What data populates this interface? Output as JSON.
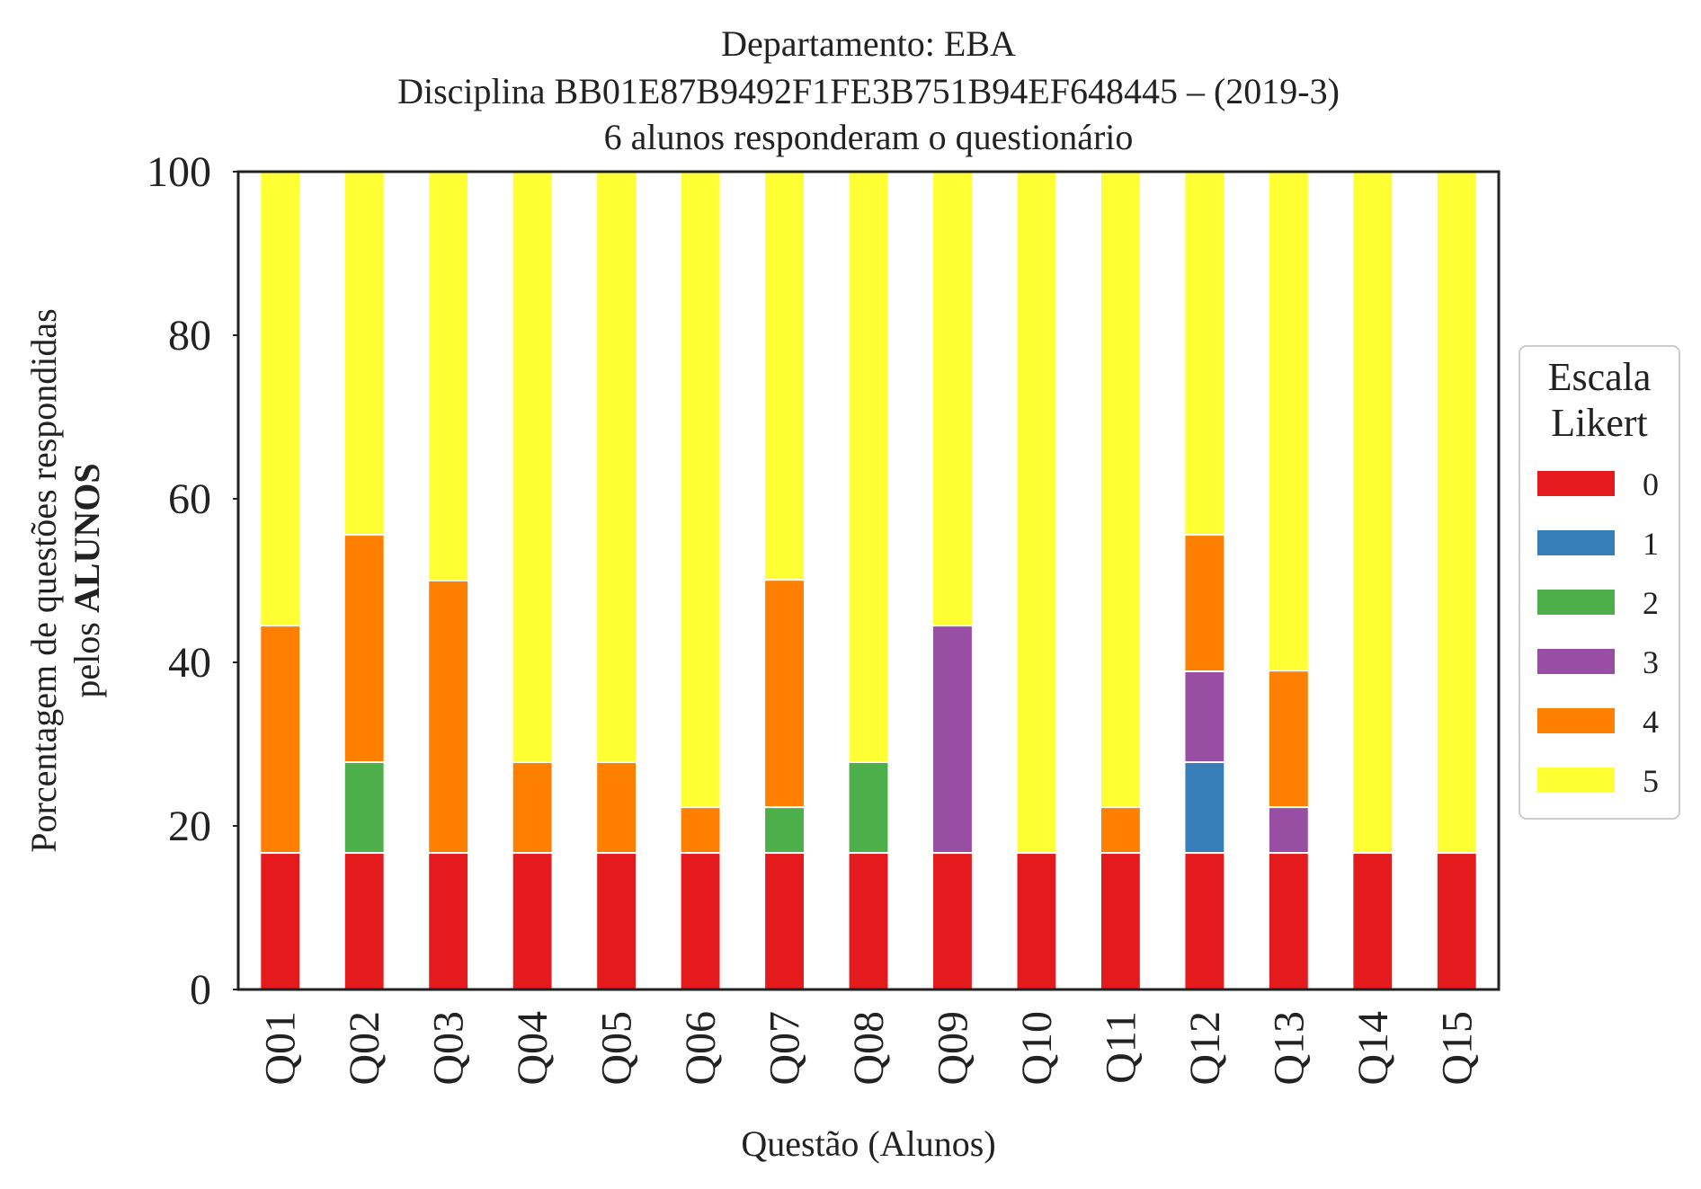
{
  "chart_data": {
    "type": "bar",
    "stacked": true,
    "title_lines": [
      "Departamento: EBA",
      "Disciplina BB01E87B9492F1FE3B751B94EF648445 – (2019-3)",
      "6 alunos responderam o questionário"
    ],
    "xlabel": "Questão (Alunos)",
    "ylabel_line1": "Porcentagem de questões respondidas",
    "ylabel_line2_prefix": "pelos ",
    "ylabel_line2_bold": "ALUNOS",
    "ylim": [
      0,
      100
    ],
    "yticks": [
      "0",
      "20",
      "40",
      "60",
      "80",
      "100"
    ],
    "categories": [
      "Q01",
      "Q02",
      "Q03",
      "Q04",
      "Q05",
      "Q06",
      "Q07",
      "Q08",
      "Q09",
      "Q10",
      "Q11",
      "Q12",
      "Q13",
      "Q14",
      "Q15"
    ],
    "legend": {
      "title_line1": "Escala",
      "title_line2": "Likert",
      "position": "center-right"
    },
    "grid": false,
    "series": [
      {
        "name": "0",
        "color": "#e41a1c",
        "values": [
          16.7,
          16.7,
          16.7,
          16.7,
          16.7,
          16.7,
          16.7,
          16.7,
          16.7,
          16.7,
          16.7,
          16.7,
          16.7,
          16.7,
          16.7
        ]
      },
      {
        "name": "1",
        "color": "#377eb8",
        "values": [
          0,
          0,
          0,
          0,
          0,
          0,
          0,
          0,
          0,
          0,
          0,
          11.1,
          0,
          0,
          0
        ]
      },
      {
        "name": "2",
        "color": "#4daf4a",
        "values": [
          0,
          11.1,
          0,
          0,
          0,
          0,
          5.6,
          11.1,
          0,
          0,
          0,
          0,
          0,
          0,
          0
        ]
      },
      {
        "name": "3",
        "color": "#984ea3",
        "values": [
          0,
          0,
          0,
          0,
          0,
          0,
          0,
          0,
          27.8,
          0,
          0,
          11.1,
          5.6,
          0,
          0
        ]
      },
      {
        "name": "4",
        "color": "#ff7f00",
        "values": [
          27.8,
          27.8,
          33.3,
          11.1,
          11.1,
          5.6,
          27.8,
          0,
          0,
          0,
          5.6,
          16.7,
          16.7,
          0,
          0
        ]
      },
      {
        "name": "5",
        "color": "#ffff33",
        "values": [
          55.6,
          44.4,
          50.0,
          72.2,
          72.2,
          77.8,
          50.0,
          72.2,
          55.6,
          83.3,
          77.8,
          44.4,
          61.1,
          83.3,
          83.3
        ]
      }
    ]
  }
}
